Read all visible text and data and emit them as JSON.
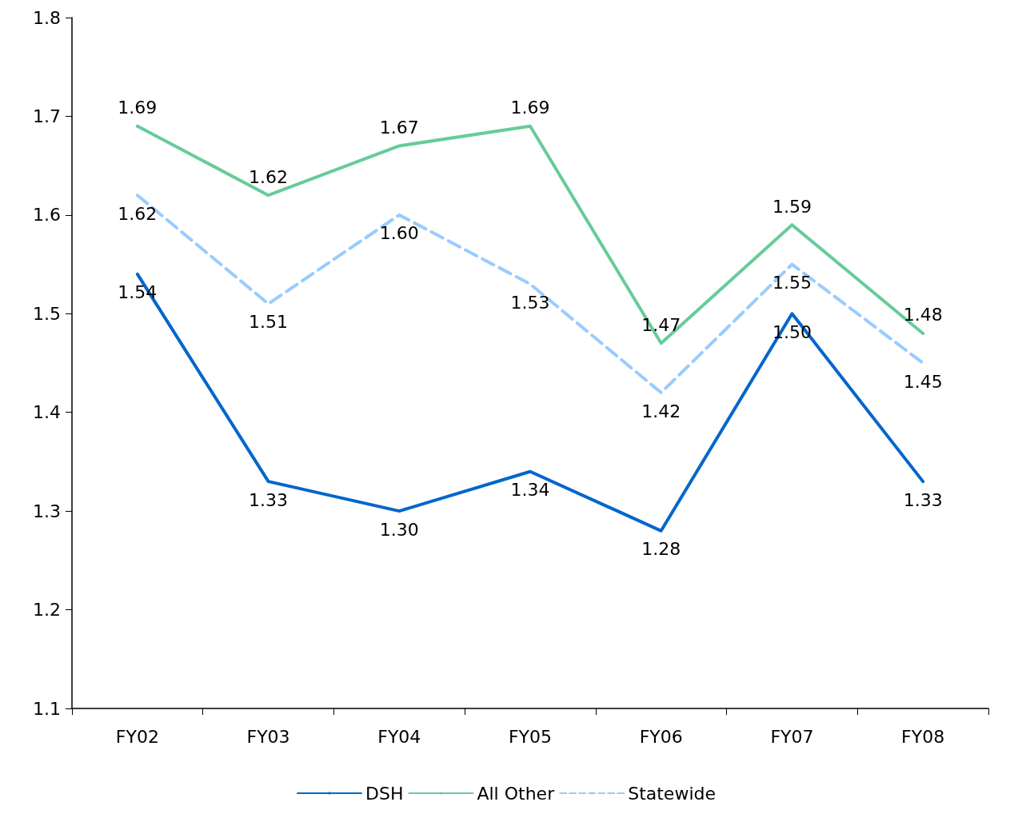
{
  "chart_data": {
    "type": "line",
    "categories": [
      "FY02",
      "FY03",
      "FY04",
      "FY05",
      "FY06",
      "FY07",
      "FY08"
    ],
    "series": [
      {
        "name": "DSH",
        "color": "#0066cc",
        "values": [
          1.54,
          1.33,
          1.3,
          1.34,
          1.28,
          1.5,
          1.33
        ],
        "value_labels": [
          "1.54",
          "1.33",
          "1.30",
          "1.34",
          "1.28",
          "1.50",
          "1.33"
        ]
      },
      {
        "name": "All Other",
        "color": "#66cc99",
        "values": [
          1.69,
          1.62,
          1.67,
          1.69,
          1.47,
          1.59,
          1.48
        ],
        "value_labels": [
          "1.69",
          "1.62",
          "1.67",
          "1.69",
          "1.47",
          "1.59",
          "1.48"
        ]
      },
      {
        "name": "Statewide",
        "color": "#99ccff",
        "line_style": "dashed",
        "values": [
          1.62,
          1.51,
          1.6,
          1.53,
          1.42,
          1.55,
          1.45
        ],
        "value_labels": [
          "1.62",
          "1.51",
          "1.60",
          "1.53",
          "1.42",
          "1.55",
          "1.45"
        ]
      }
    ],
    "ylim": [
      1.1,
      1.8
    ],
    "yticks": [
      1.1,
      1.2,
      1.3,
      1.4,
      1.5,
      1.6,
      1.7,
      1.8
    ],
    "grid": false,
    "legend": "bottom",
    "marker": "none"
  }
}
